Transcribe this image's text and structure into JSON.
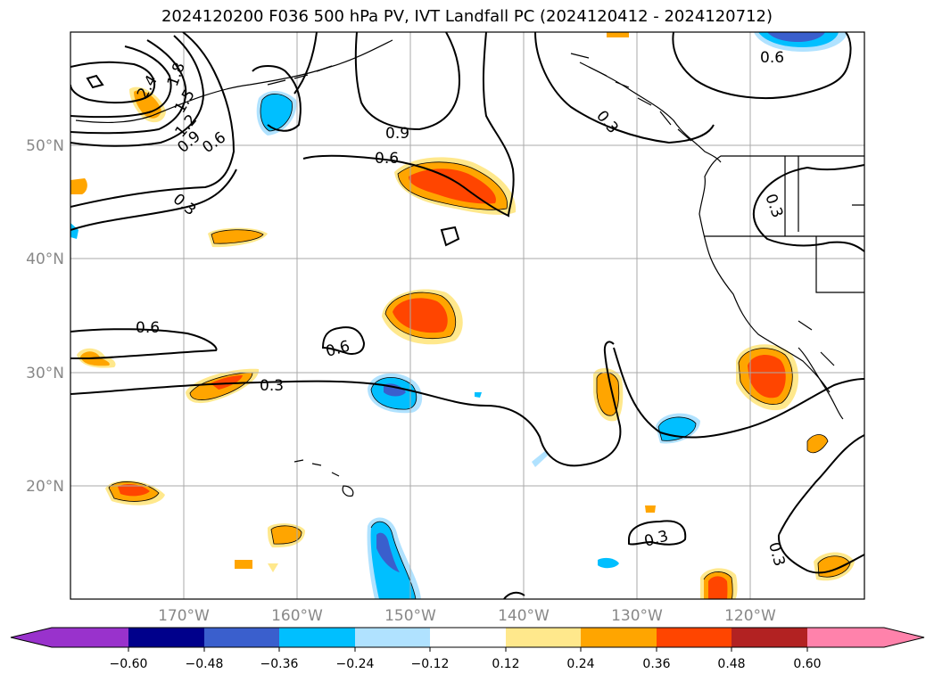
{
  "title": "2024120200 F036 500 hPa PV, IVT Landfall PC (2024120412 - 2024120712)",
  "lat_labels": [
    "20°N",
    "30°N",
    "40°N",
    "50°N"
  ],
  "lon_labels": [
    "170°W",
    "160°W",
    "150°W",
    "140°W",
    "130°W",
    "120°W"
  ],
  "contour_labels": [
    "2.4",
    "1.8",
    "1.5",
    "1.2",
    "0.9",
    "0.6",
    "0.3",
    "0.9",
    "0.6",
    "0.6",
    "0.6",
    "0.3",
    "0.3",
    "0.3",
    "0.6",
    "0.3",
    "0.3"
  ],
  "colorbar": {
    "ticks": [
      "−0.60",
      "−0.48",
      "−0.36",
      "−0.24",
      "−0.12",
      "0.12",
      "0.24",
      "0.36",
      "0.48",
      "0.60"
    ],
    "colors": [
      "#9932CC",
      "#00008B",
      "#3A5FCD",
      "#00BFFF",
      "#B0E2FF",
      "#FFFFFF",
      "#FFE88C",
      "#FFA500",
      "#FF4500",
      "#B22222",
      "#FF82AB"
    ]
  }
}
